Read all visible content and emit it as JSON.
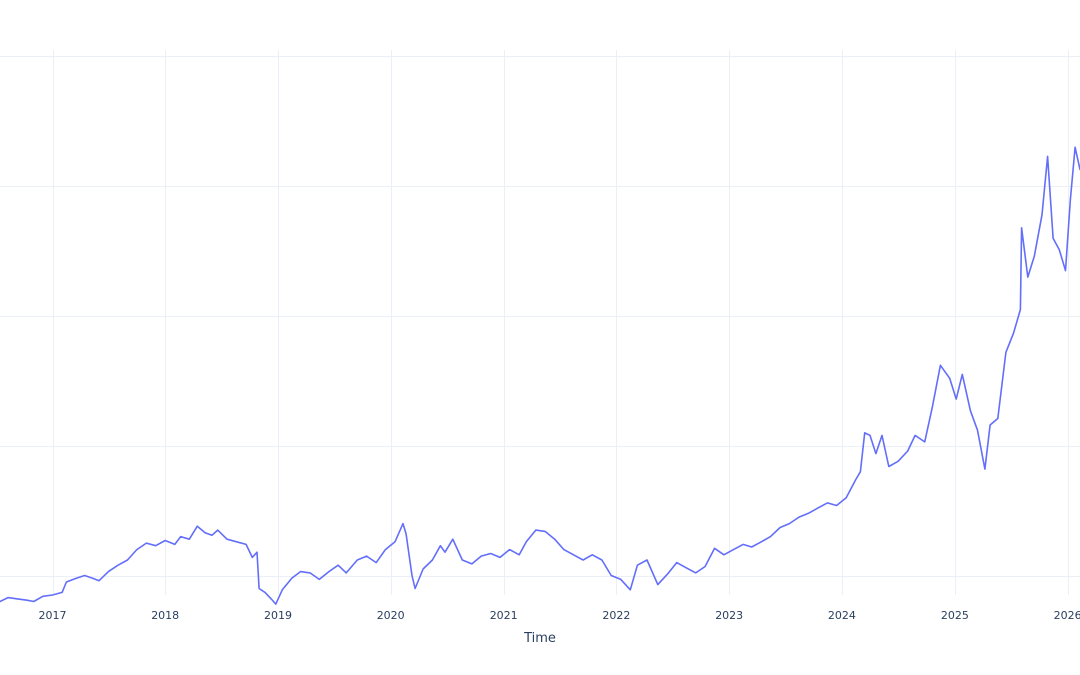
{
  "chart_data": {
    "type": "line",
    "title": "",
    "xlabel": "Time",
    "ylabel": "",
    "x_type": "date",
    "x_range": [
      "2016-07-15",
      "2026-02-10"
    ],
    "y_range": [
      0.85,
      5.05
    ],
    "y_tick_values": [
      1,
      2,
      3,
      4,
      5
    ],
    "show_y_tick_labels": false,
    "grid": true,
    "legend": "none",
    "x_ticks": [
      {
        "date": "2017-01-01",
        "label": "2017"
      },
      {
        "date": "2018-01-01",
        "label": "2018"
      },
      {
        "date": "2019-01-01",
        "label": "2019"
      },
      {
        "date": "2020-01-01",
        "label": "2020"
      },
      {
        "date": "2021-01-01",
        "label": "2021"
      },
      {
        "date": "2022-01-01",
        "label": "2022"
      },
      {
        "date": "2023-01-01",
        "label": "2023"
      },
      {
        "date": "2024-01-01",
        "label": "2024"
      },
      {
        "date": "2025-01-01",
        "label": "2025"
      },
      {
        "date": "2026-01-01",
        "label": "2026"
      }
    ],
    "series": [
      {
        "color": "#636efa",
        "points": [
          [
            "2016-07-15",
            0.8
          ],
          [
            "2016-08-10",
            0.83
          ],
          [
            "2016-09-10",
            0.82
          ],
          [
            "2016-10-10",
            0.81
          ],
          [
            "2016-11-01",
            0.8
          ],
          [
            "2016-12-01",
            0.84
          ],
          [
            "2017-01-01",
            0.85
          ],
          [
            "2017-02-01",
            0.87
          ],
          [
            "2017-02-15",
            0.95
          ],
          [
            "2017-03-20",
            0.98
          ],
          [
            "2017-04-15",
            1.0
          ],
          [
            "2017-05-10",
            0.98
          ],
          [
            "2017-06-01",
            0.96
          ],
          [
            "2017-07-01",
            1.03
          ],
          [
            "2017-08-01",
            1.08
          ],
          [
            "2017-09-01",
            1.12
          ],
          [
            "2017-10-01",
            1.2
          ],
          [
            "2017-11-01",
            1.25
          ],
          [
            "2017-12-01",
            1.23
          ],
          [
            "2018-01-01",
            1.27
          ],
          [
            "2018-02-01",
            1.24
          ],
          [
            "2018-02-20",
            1.3
          ],
          [
            "2018-03-20",
            1.28
          ],
          [
            "2018-04-15",
            1.38
          ],
          [
            "2018-05-10",
            1.33
          ],
          [
            "2018-06-01",
            1.31
          ],
          [
            "2018-06-20",
            1.35
          ],
          [
            "2018-07-20",
            1.28
          ],
          [
            "2018-08-20",
            1.26
          ],
          [
            "2018-09-20",
            1.24
          ],
          [
            "2018-10-10",
            1.14
          ],
          [
            "2018-10-25",
            1.18
          ],
          [
            "2018-11-01",
            0.9
          ],
          [
            "2018-11-20",
            0.87
          ],
          [
            "2018-12-10",
            0.82
          ],
          [
            "2018-12-25",
            0.78
          ],
          [
            "2019-01-15",
            0.89
          ],
          [
            "2019-02-15",
            0.98
          ],
          [
            "2019-03-15",
            1.03
          ],
          [
            "2019-04-15",
            1.02
          ],
          [
            "2019-05-15",
            0.97
          ],
          [
            "2019-06-15",
            1.03
          ],
          [
            "2019-07-15",
            1.08
          ],
          [
            "2019-08-10",
            1.02
          ],
          [
            "2019-09-15",
            1.12
          ],
          [
            "2019-10-15",
            1.15
          ],
          [
            "2019-11-15",
            1.1
          ],
          [
            "2019-12-15",
            1.2
          ],
          [
            "2020-01-15",
            1.26
          ],
          [
            "2020-02-10",
            1.4
          ],
          [
            "2020-02-20",
            1.32
          ],
          [
            "2020-03-10",
            1.0
          ],
          [
            "2020-03-20",
            0.9
          ],
          [
            "2020-04-15",
            1.05
          ],
          [
            "2020-05-15",
            1.12
          ],
          [
            "2020-06-10",
            1.23
          ],
          [
            "2020-06-25",
            1.18
          ],
          [
            "2020-07-20",
            1.28
          ],
          [
            "2020-08-20",
            1.12
          ],
          [
            "2020-09-20",
            1.09
          ],
          [
            "2020-10-20",
            1.15
          ],
          [
            "2020-11-20",
            1.17
          ],
          [
            "2020-12-20",
            1.14
          ],
          [
            "2021-01-20",
            1.2
          ],
          [
            "2021-02-20",
            1.16
          ],
          [
            "2021-03-15",
            1.26
          ],
          [
            "2021-04-15",
            1.35
          ],
          [
            "2021-05-15",
            1.34
          ],
          [
            "2021-06-15",
            1.28
          ],
          [
            "2021-07-15",
            1.2
          ],
          [
            "2021-08-15",
            1.16
          ],
          [
            "2021-09-15",
            1.12
          ],
          [
            "2021-10-15",
            1.16
          ],
          [
            "2021-11-15",
            1.12
          ],
          [
            "2021-12-15",
            1.0
          ],
          [
            "2022-01-15",
            0.97
          ],
          [
            "2022-02-15",
            0.89
          ],
          [
            "2022-03-10",
            1.08
          ],
          [
            "2022-04-10",
            1.12
          ],
          [
            "2022-05-15",
            0.93
          ],
          [
            "2022-06-15",
            1.01
          ],
          [
            "2022-07-15",
            1.1
          ],
          [
            "2022-08-15",
            1.06
          ],
          [
            "2022-09-15",
            1.02
          ],
          [
            "2022-10-15",
            1.07
          ],
          [
            "2022-11-15",
            1.21
          ],
          [
            "2022-12-15",
            1.16
          ],
          [
            "2023-01-15",
            1.2
          ],
          [
            "2023-02-15",
            1.24
          ],
          [
            "2023-03-15",
            1.22
          ],
          [
            "2023-04-15",
            1.26
          ],
          [
            "2023-05-15",
            1.3
          ],
          [
            "2023-06-15",
            1.37
          ],
          [
            "2023-07-15",
            1.4
          ],
          [
            "2023-08-15",
            1.45
          ],
          [
            "2023-09-15",
            1.48
          ],
          [
            "2023-10-15",
            1.52
          ],
          [
            "2023-11-15",
            1.56
          ],
          [
            "2023-12-15",
            1.54
          ],
          [
            "2024-01-15",
            1.6
          ],
          [
            "2024-02-15",
            1.74
          ],
          [
            "2024-03-01",
            1.8
          ],
          [
            "2024-03-15",
            2.1
          ],
          [
            "2024-04-01",
            2.08
          ],
          [
            "2024-04-20",
            1.94
          ],
          [
            "2024-05-10",
            2.08
          ],
          [
            "2024-06-01",
            1.84
          ],
          [
            "2024-07-01",
            1.88
          ],
          [
            "2024-08-01",
            1.96
          ],
          [
            "2024-08-25",
            2.08
          ],
          [
            "2024-09-25",
            2.03
          ],
          [
            "2024-10-20",
            2.3
          ],
          [
            "2024-11-15",
            2.62
          ],
          [
            "2024-12-15",
            2.52
          ],
          [
            "2025-01-05",
            2.36
          ],
          [
            "2025-01-25",
            2.55
          ],
          [
            "2025-02-20",
            2.27
          ],
          [
            "2025-03-15",
            2.12
          ],
          [
            "2025-04-08",
            1.82
          ],
          [
            "2025-04-25",
            2.16
          ],
          [
            "2025-05-20",
            2.21
          ],
          [
            "2025-06-15",
            2.72
          ],
          [
            "2025-07-10",
            2.87
          ],
          [
            "2025-08-01",
            3.05
          ],
          [
            "2025-08-05",
            3.68
          ],
          [
            "2025-08-25",
            3.3
          ],
          [
            "2025-09-15",
            3.46
          ],
          [
            "2025-10-10",
            3.78
          ],
          [
            "2025-10-28",
            4.23
          ],
          [
            "2025-11-15",
            3.6
          ],
          [
            "2025-12-05",
            3.51
          ],
          [
            "2025-12-25",
            3.35
          ],
          [
            "2026-01-10",
            3.9
          ],
          [
            "2026-01-25",
            4.3
          ],
          [
            "2026-02-10",
            4.13
          ]
        ]
      }
    ]
  }
}
